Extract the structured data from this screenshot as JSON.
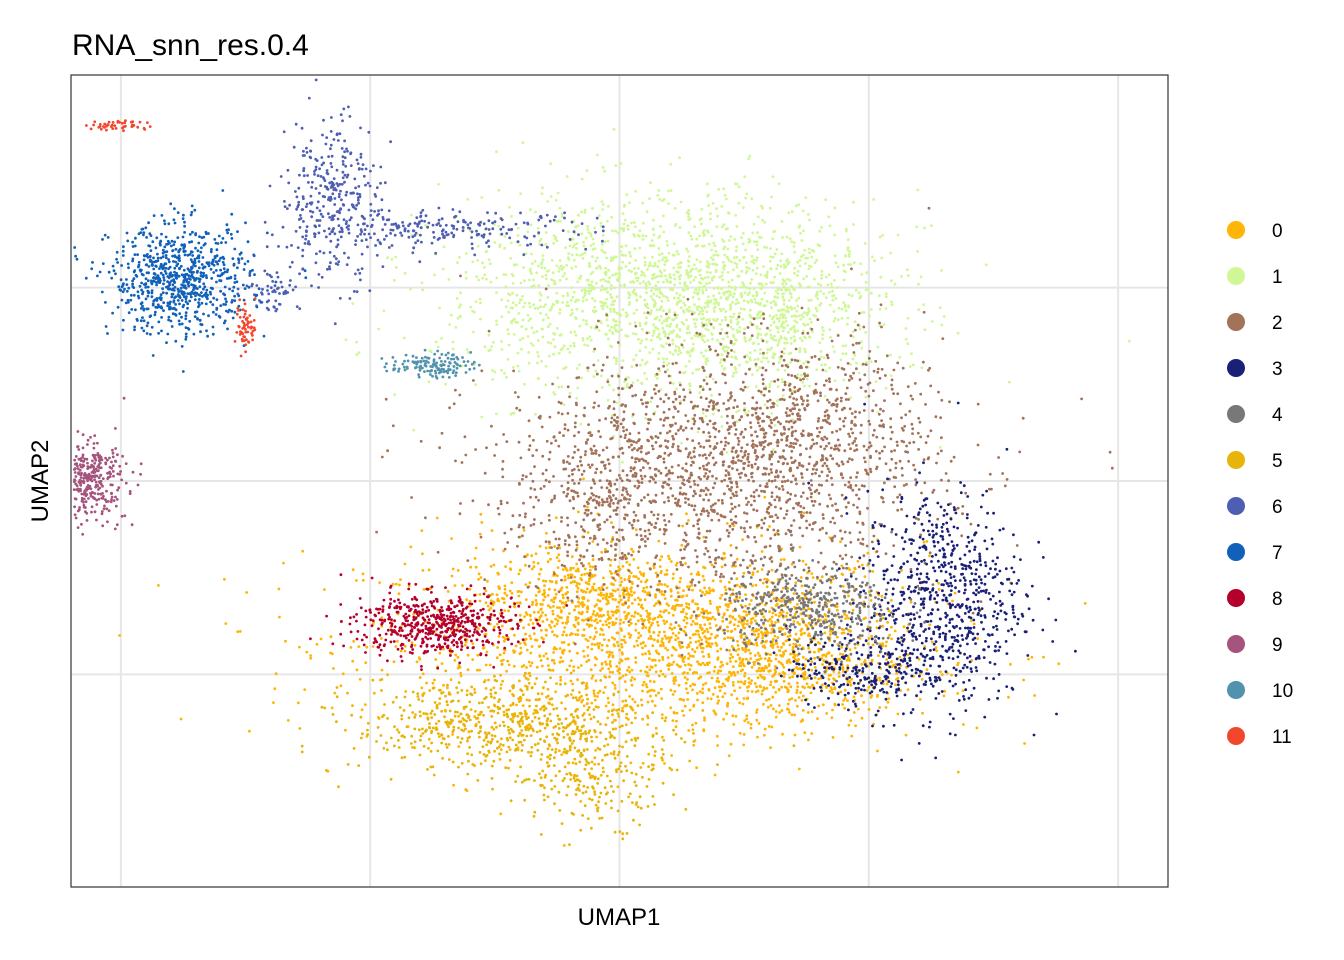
{
  "chart_data": {
    "type": "scatter",
    "title": "RNA_snn_res.0.4",
    "xlabel": "UMAP1",
    "ylabel": "UMAP2",
    "xlim": [
      -1.0,
      1.0
    ],
    "ylim": [
      -1.0,
      1.0
    ],
    "x_tick_labels": [],
    "y_tick_labels": [],
    "grid": true,
    "legend_placement": "right",
    "series": [
      {
        "name": "0",
        "color": "#FEB506",
        "clusters": [
          {
            "cx": 0.05,
            "cy": -0.42,
            "sx": 0.28,
            "sy": 0.13,
            "n": 1700
          },
          {
            "cx": 0.35,
            "cy": -0.5,
            "sx": 0.12,
            "sy": 0.06,
            "n": 350
          },
          {
            "cx": -0.08,
            "cy": -0.3,
            "sx": 0.1,
            "sy": 0.06,
            "n": 300
          },
          {
            "cx": 0.28,
            "cy": -0.35,
            "sx": 0.1,
            "sy": 0.06,
            "n": 250
          }
        ]
      },
      {
        "name": "1",
        "color": "#D0F796",
        "clusters": [
          {
            "cx": 0.08,
            "cy": 0.48,
            "sx": 0.22,
            "sy": 0.13,
            "n": 1700
          },
          {
            "cx": 0.3,
            "cy": 0.42,
            "sx": 0.12,
            "sy": 0.1,
            "n": 400
          }
        ]
      },
      {
        "name": "2",
        "color": "#A27259",
        "clusters": [
          {
            "cx": 0.2,
            "cy": 0.02,
            "sx": 0.22,
            "sy": 0.16,
            "n": 1500
          },
          {
            "cx": 0.38,
            "cy": 0.15,
            "sx": 0.12,
            "sy": 0.12,
            "n": 400
          },
          {
            "cx": -0.05,
            "cy": -0.05,
            "sx": 0.08,
            "sy": 0.12,
            "n": 250
          }
        ]
      },
      {
        "name": "3",
        "color": "#1A2076",
        "clusters": [
          {
            "cx": 0.65,
            "cy": -0.3,
            "sx": 0.08,
            "sy": 0.14,
            "n": 700
          },
          {
            "cx": 0.5,
            "cy": -0.48,
            "sx": 0.08,
            "sy": 0.05,
            "n": 250
          }
        ]
      },
      {
        "name": "4",
        "color": "#787878",
        "clusters": [
          {
            "cx": 0.38,
            "cy": -0.33,
            "sx": 0.09,
            "sy": 0.06,
            "n": 450
          }
        ]
      },
      {
        "name": "5",
        "color": "#E8B40A",
        "clusters": [
          {
            "cx": -0.25,
            "cy": -0.63,
            "sx": 0.14,
            "sy": 0.06,
            "n": 550
          },
          {
            "cx": -0.05,
            "cy": -0.75,
            "sx": 0.08,
            "sy": 0.07,
            "n": 250
          }
        ]
      },
      {
        "name": "6",
        "color": "#4E5FB3",
        "clusters": [
          {
            "cx": -0.58,
            "cy": 0.73,
            "sx": 0.05,
            "sy": 0.11,
            "n": 320
          },
          {
            "cx": -0.35,
            "cy": 0.65,
            "sx": 0.15,
            "sy": 0.025,
            "n": 220
          },
          {
            "cx": -0.7,
            "cy": 0.5,
            "sx": 0.03,
            "sy": 0.03,
            "n": 60
          }
        ]
      },
      {
        "name": "7",
        "color": "#1160B9",
        "clusters": [
          {
            "cx": -0.88,
            "cy": 0.52,
            "sx": 0.07,
            "sy": 0.07,
            "n": 750
          }
        ]
      },
      {
        "name": "8",
        "color": "#B5002C",
        "clusters": [
          {
            "cx": -0.37,
            "cy": -0.37,
            "sx": 0.08,
            "sy": 0.04,
            "n": 550
          }
        ]
      },
      {
        "name": "9",
        "color": "#A5547E",
        "clusters": [
          {
            "cx": -1.07,
            "cy": 0.0,
            "sx": 0.04,
            "sy": 0.05,
            "n": 380
          }
        ]
      },
      {
        "name": "10",
        "color": "#5192AF",
        "clusters": [
          {
            "cx": -0.38,
            "cy": 0.3,
            "sx": 0.04,
            "sy": 0.015,
            "n": 130
          }
        ]
      },
      {
        "name": "11",
        "color": "#F2472C",
        "clusters": [
          {
            "cx": -1.0,
            "cy": 0.92,
            "sx": 0.03,
            "sy": 0.008,
            "n": 45
          },
          {
            "cx": -0.75,
            "cy": 0.4,
            "sx": 0.01,
            "sy": 0.03,
            "n": 60
          }
        ]
      }
    ]
  }
}
